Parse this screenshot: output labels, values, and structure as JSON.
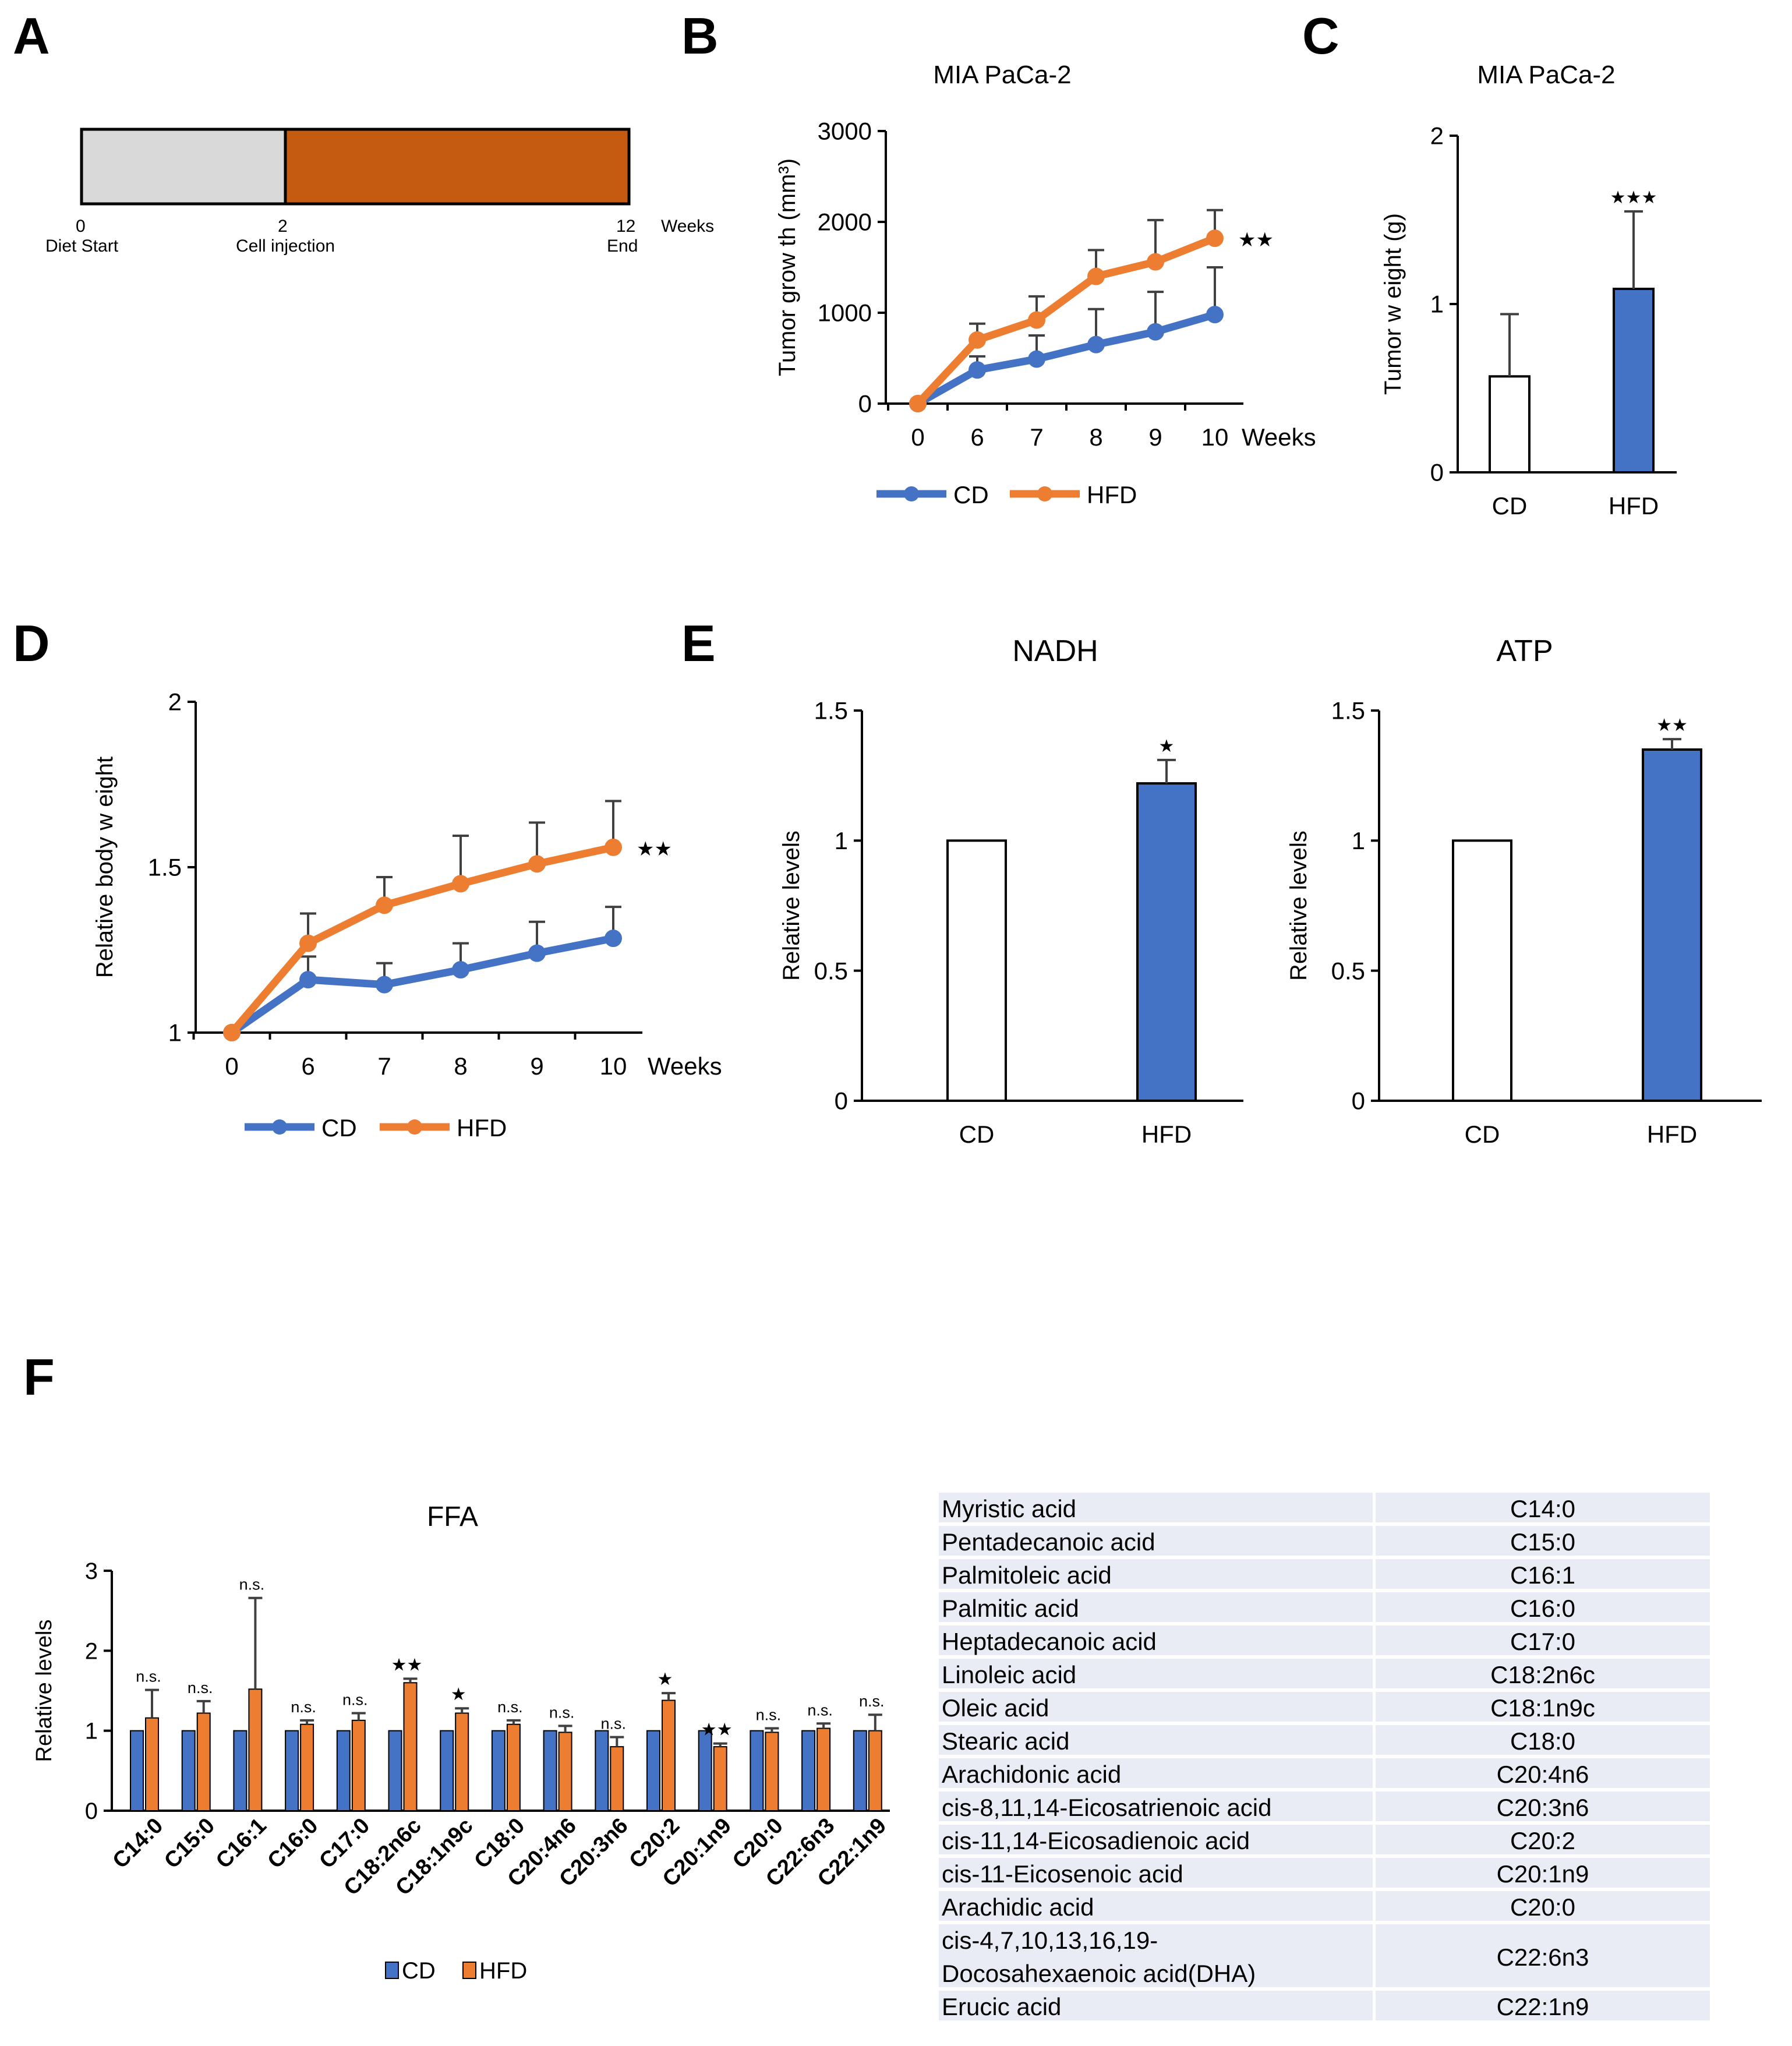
{
  "panels": {
    "A": {
      "label": "A",
      "ticks": [
        {
          "num": "0",
          "text": "Diet Start"
        },
        {
          "num": "2",
          "text": "Cell injection"
        },
        {
          "num": "12",
          "text": "End"
        }
      ],
      "unit": "Weeks",
      "colors": {
        "diet": "#d9d9d9",
        "tumor": "#c55a11"
      }
    },
    "B": {
      "label": "B"
    },
    "C": {
      "label": "C"
    },
    "D": {
      "label": "D"
    },
    "E": {
      "label": "E"
    },
    "F": {
      "label": "F"
    }
  },
  "colors": {
    "cd": "#4472c4",
    "hfd": "#ed7d31",
    "white_bar": "#ffffff"
  },
  "chart_data": [
    {
      "id": "B",
      "type": "line",
      "title": "MIA  PaCa-2",
      "categories": [
        "0",
        "6",
        "7",
        "8",
        "9",
        "10"
      ],
      "x_suffix": "Weeks",
      "ylabel": "Tumor grow th (mm³)",
      "ylim": [
        0,
        3000
      ],
      "yticks": [
        "0",
        "1000",
        "2000",
        "3000"
      ],
      "series": [
        {
          "name": "CD",
          "values": [
            0,
            370,
            490,
            650,
            790,
            980
          ],
          "errors": [
            0,
            150,
            260,
            390,
            440,
            520
          ]
        },
        {
          "name": "HFD",
          "values": [
            0,
            700,
            920,
            1400,
            1560,
            1820
          ],
          "errors": [
            0,
            180,
            260,
            290,
            460,
            310
          ]
        }
      ],
      "annotation": "★★",
      "legend": "bottom"
    },
    {
      "id": "C",
      "type": "bar",
      "title": "MIA  PaCa-2",
      "categories": [
        "CD",
        "HFD"
      ],
      "values": [
        0.57,
        1.09
      ],
      "errors": [
        0.37,
        0.46
      ],
      "ylabel": "Tumor w eight (g)",
      "ylim": [
        0,
        2
      ],
      "yticks": [
        "0",
        "1",
        "2"
      ],
      "annotations": [
        "",
        "★★★"
      ]
    },
    {
      "id": "D",
      "type": "line",
      "title": "",
      "categories": [
        "0",
        "6",
        "7",
        "8",
        "9",
        "10"
      ],
      "x_suffix": "Weeks",
      "ylabel": "Relative body w eight",
      "ylim": [
        1,
        2
      ],
      "yticks": [
        "1",
        "1.5",
        "2"
      ],
      "series": [
        {
          "name": "CD",
          "values": [
            1.0,
            1.16,
            1.145,
            1.19,
            1.24,
            1.285
          ],
          "errors": [
            0,
            0.07,
            0.065,
            0.08,
            0.095,
            0.095
          ]
        },
        {
          "name": "HFD",
          "values": [
            1.0,
            1.27,
            1.385,
            1.45,
            1.51,
            1.56
          ],
          "errors": [
            0,
            0.09,
            0.085,
            0.145,
            0.125,
            0.14
          ]
        }
      ],
      "annotation": "★★",
      "legend": "bottom"
    },
    {
      "id": "E1",
      "type": "bar",
      "title": "NADH",
      "categories": [
        "CD",
        "HFD"
      ],
      "values": [
        1.0,
        1.22
      ],
      "errors": [
        0,
        0.09
      ],
      "ylabel": "Relative levels",
      "ylim": [
        0,
        1.5
      ],
      "yticks": [
        "0",
        "0.5",
        "1",
        "1.5"
      ],
      "annotations": [
        "",
        "★"
      ]
    },
    {
      "id": "E2",
      "type": "bar",
      "title": "ATP",
      "categories": [
        "CD",
        "HFD"
      ],
      "values": [
        1.0,
        1.35
      ],
      "errors": [
        0,
        0.04
      ],
      "ylabel": "Relative levels",
      "ylim": [
        0,
        1.5
      ],
      "yticks": [
        "0",
        "0.5",
        "1",
        "1.5"
      ],
      "annotations": [
        "",
        "★★"
      ]
    },
    {
      "id": "F",
      "type": "bar",
      "title": "FFA",
      "categories": [
        "C14:0",
        "C15:0",
        "C16:1",
        "C16:0",
        "C17:0",
        "C18:2n6c",
        "C18:1n9c",
        "C18:0",
        "C20:4n6",
        "C20:3n6",
        "C20:2",
        "C20:1n9",
        "C20:0",
        "C22:6n3",
        "C22:1n9"
      ],
      "series": [
        {
          "name": "CD",
          "values": [
            1,
            1,
            1,
            1,
            1,
            1,
            1,
            1,
            1,
            1,
            1,
            1,
            1,
            1,
            1
          ]
        },
        {
          "name": "HFD",
          "values": [
            1.16,
            1.22,
            1.52,
            1.08,
            1.13,
            1.6,
            1.22,
            1.08,
            0.98,
            0.8,
            1.38,
            0.8,
            0.98,
            1.03,
            1.0
          ],
          "errors": [
            0.35,
            0.15,
            1.14,
            0.05,
            0.09,
            0.05,
            0.06,
            0.05,
            0.08,
            0.12,
            0.09,
            0.04,
            0.05,
            0.06,
            0.2
          ]
        }
      ],
      "annotations": [
        "n.s.",
        "n.s.",
        "n.s.",
        "n.s.",
        "n.s.",
        "★★",
        "★",
        "n.s.",
        "n.s.",
        "n.s.",
        "★",
        "★★",
        "n.s.",
        "n.s.",
        "n.s."
      ],
      "ylabel": "Relative levels",
      "ylim": [
        0,
        3
      ],
      "yticks": [
        "0",
        "1",
        "2",
        "3"
      ],
      "legend": "bottom"
    }
  ],
  "table": {
    "rows": [
      {
        "name": "Myristic acid",
        "code": "C14:0"
      },
      {
        "name": "Pentadecanoic acid",
        "code": "C15:0"
      },
      {
        "name": "Palmitoleic  acid",
        "code": "C16:1"
      },
      {
        "name": "Palmitic  acid",
        "code": "C16:0"
      },
      {
        "name": "Heptadecanoic acid",
        "code": "C17:0"
      },
      {
        "name": "Linoleic acid",
        "code": "C18:2n6c"
      },
      {
        "name": "Oleic acid",
        "code": "C18:1n9c"
      },
      {
        "name": "Stearic acid",
        "code": "C18:0"
      },
      {
        "name": "Arachidonic acid",
        "code": "C20:4n6"
      },
      {
        "name": "cis-8,11,14-Eicosatrienoic acid",
        "code": "C20:3n6"
      },
      {
        "name": "cis-11,14-Eicosadienoic acid",
        "code": "C20:2"
      },
      {
        "name": "cis-11-Eicosenoic acid",
        "code": "C20:1n9"
      },
      {
        "name": "Arachidic acid",
        "code": "C20:0"
      },
      {
        "name": "cis-4,7,10,13,16,19-",
        "name2": "Docosahexaenoic acid(DHA)",
        "code": "C22:6n3"
      },
      {
        "name": "Erucic acid",
        "code": "C22:1n9"
      }
    ],
    "colors": {
      "row_bg": "#e9ebf5"
    }
  }
}
